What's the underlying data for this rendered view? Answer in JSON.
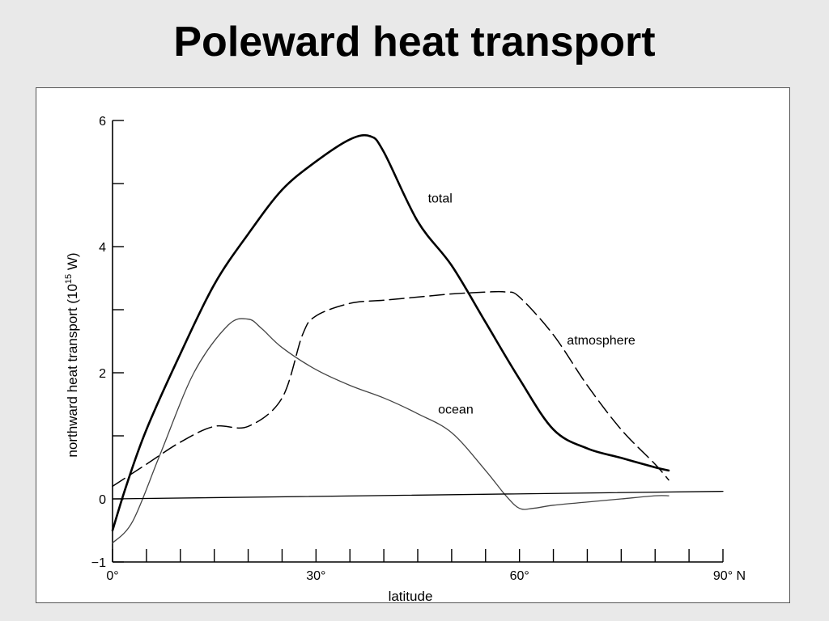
{
  "slide": {
    "title": "Poleward heat transport"
  },
  "chart_data": {
    "type": "line",
    "title": "",
    "xlabel": "latitude",
    "ylabel_main": "northward heat transport (10",
    "ylabel_sup": "15",
    "ylabel_unit": " W)",
    "xlim": [
      0,
      90
    ],
    "ylim": [
      -1,
      6
    ],
    "x_ticks": [
      0,
      5,
      10,
      15,
      20,
      25,
      30,
      35,
      40,
      45,
      50,
      55,
      60,
      65,
      70,
      75,
      80,
      85,
      90
    ],
    "x_tick_labels": [
      {
        "x": 0,
        "label": "0°"
      },
      {
        "x": 30,
        "label": "30°"
      },
      {
        "x": 60,
        "label": "60°"
      },
      {
        "x": 90,
        "label": "90° N"
      }
    ],
    "y_ticks": [
      -1,
      0,
      1,
      2,
      3,
      4,
      5,
      6
    ],
    "y_tick_labels": [
      {
        "y": -1,
        "label": "−1"
      },
      {
        "y": 0,
        "label": "0"
      },
      {
        "y": 2,
        "label": "2"
      },
      {
        "y": 4,
        "label": "4"
      },
      {
        "y": 6,
        "label": "6"
      }
    ],
    "series": [
      {
        "name": "total",
        "style": "solid-bold",
        "color": "#000000",
        "x": [
          0,
          2,
          5,
          10,
          15,
          20,
          25,
          30,
          35,
          38,
          40,
          45,
          50,
          55,
          60,
          65,
          70,
          75,
          80,
          82
        ],
        "y": [
          -0.5,
          0.2,
          1.1,
          2.3,
          3.4,
          4.2,
          4.9,
          5.35,
          5.7,
          5.75,
          5.5,
          4.4,
          3.7,
          2.8,
          1.9,
          1.1,
          0.8,
          0.65,
          0.5,
          0.45
        ]
      },
      {
        "name": "atmosphere",
        "style": "dashed",
        "color": "#000000",
        "x": [
          0,
          5,
          10,
          15,
          20,
          25,
          28,
          30,
          35,
          40,
          45,
          50,
          55,
          58,
          60,
          65,
          70,
          75,
          80,
          82
        ],
        "y": [
          0.2,
          0.55,
          0.9,
          1.15,
          1.15,
          1.6,
          2.6,
          2.9,
          3.1,
          3.15,
          3.2,
          3.25,
          3.28,
          3.28,
          3.2,
          2.6,
          1.8,
          1.1,
          0.55,
          0.3
        ]
      },
      {
        "name": "ocean",
        "style": "solid-thin",
        "color": "#444444",
        "x": [
          0,
          3,
          7,
          12,
          17,
          20,
          22,
          25,
          30,
          35,
          40,
          45,
          50,
          55,
          58,
          60,
          62,
          65,
          70,
          75,
          80,
          82
        ],
        "y": [
          -0.7,
          -0.35,
          0.7,
          2.0,
          2.75,
          2.85,
          2.7,
          2.4,
          2.05,
          1.8,
          1.6,
          1.35,
          1.05,
          0.45,
          0.05,
          -0.15,
          -0.15,
          -0.1,
          -0.05,
          0.0,
          0.05,
          0.05
        ]
      },
      {
        "name": "zero-line",
        "style": "solid-thin-ref",
        "color": "#000000",
        "x": [
          0,
          90
        ],
        "y": [
          0.0,
          0.12
        ]
      }
    ],
    "annotations": [
      {
        "text": "total",
        "x": 46.5,
        "y": 4.7
      },
      {
        "text": "atmosphere",
        "x": 67,
        "y": 2.45
      },
      {
        "text": "ocean",
        "x": 48,
        "y": 1.35
      }
    ],
    "grid": false,
    "legend": "none"
  }
}
